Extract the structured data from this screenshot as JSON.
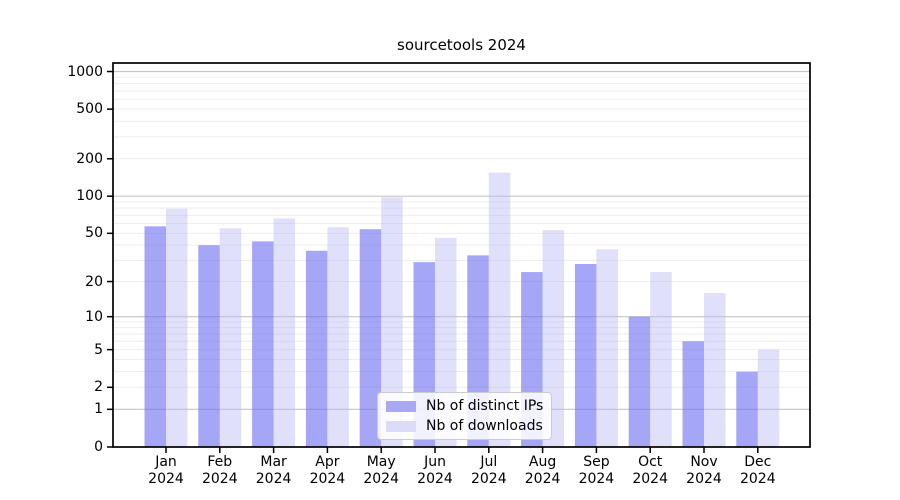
{
  "figure": {
    "title": "sourcetools 2024"
  },
  "chart_data": {
    "type": "bar",
    "title": "sourcetools 2024",
    "x": {
      "categories": [
        "Jan",
        "Feb",
        "Mar",
        "Apr",
        "May",
        "Jun",
        "Jul",
        "Aug",
        "Sep",
        "Oct",
        "Nov",
        "Dec"
      ],
      "year_label": "2024"
    },
    "series": [
      {
        "name": "Nb of distinct IPs",
        "values": [
          57,
          40,
          43,
          36,
          54,
          29,
          33,
          24,
          28,
          10,
          6,
          3
        ],
        "bar_color": "rgba(112,112,240,0.62)",
        "legend_color": "#a8a8f5"
      },
      {
        "name": "Nb of downloads",
        "values": [
          79,
          55,
          66,
          56,
          98,
          46,
          155,
          53,
          37,
          24,
          16,
          5
        ],
        "bar_color": "rgba(180,180,242,0.42)",
        "legend_color": "#dcdcf9"
      }
    ],
    "y_axis": {
      "scale": "log1p",
      "tick_values": [
        0,
        1,
        2,
        5,
        10,
        20,
        50,
        100,
        200,
        500,
        1000
      ],
      "ylim": [
        0,
        1170
      ],
      "major_gridlines": [
        1,
        10,
        100,
        1000
      ]
    },
    "grid": "horizontal",
    "legend_position": "lower center"
  },
  "colors": {
    "major_grid": "#c6c6c6",
    "minor_grid": "#ededed",
    "spine": "#000000",
    "tick": "#000000",
    "background": "#ffffff",
    "text": "#111111"
  }
}
